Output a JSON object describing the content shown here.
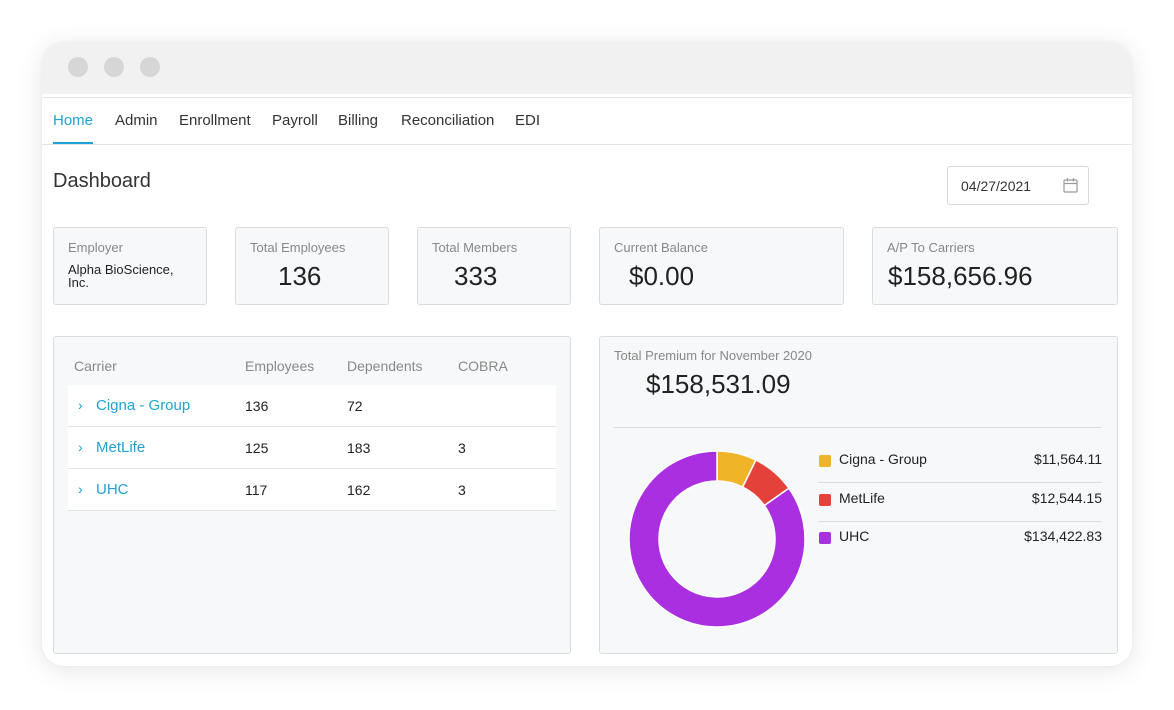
{
  "nav": {
    "tabs": [
      {
        "label": "Home",
        "active": true
      },
      {
        "label": "Admin"
      },
      {
        "label": "Enrollment"
      },
      {
        "label": "Payroll"
      },
      {
        "label": "Billing"
      },
      {
        "label": "Reconciliation"
      },
      {
        "label": "EDI"
      }
    ]
  },
  "page": {
    "title": "Dashboard",
    "date": "04/27/2021",
    "calendar_icon": "calendar-icon"
  },
  "summary": {
    "employer": {
      "label": "Employer",
      "value": "Alpha BioScience, Inc."
    },
    "total_employees": {
      "label": "Total Employees",
      "value": "136"
    },
    "total_members": {
      "label": "Total Members",
      "value": "333"
    },
    "current_balance": {
      "label": "Current Balance",
      "value": "$0.00"
    },
    "ap_to_carriers": {
      "label": "A/P To Carriers",
      "value": "$158,656.96"
    }
  },
  "carriers_table": {
    "headers": [
      "Carrier",
      "Employees",
      "Dependents",
      "COBRA"
    ],
    "expand_icon": "chevron-right-icon",
    "rows": [
      {
        "carrier": "Cigna - Group",
        "employees": "136",
        "dependents": "72",
        "cobra": ""
      },
      {
        "carrier": "MetLife",
        "employees": "125",
        "dependents": "183",
        "cobra": "3"
      },
      {
        "carrier": "UHC",
        "employees": "117",
        "dependents": "162",
        "cobra": "3"
      }
    ]
  },
  "premium": {
    "label": "Total Premium for November 2020",
    "total": "$158,531.09",
    "legend": [
      {
        "name": "Cigna - Group",
        "amount": "$11,564.11",
        "color": "#f0b429"
      },
      {
        "name": "MetLife",
        "amount": "$12,544.15",
        "color": "#e3413a"
      },
      {
        "name": "UHC",
        "amount": "$134,422.83",
        "color": "#a92fe0"
      }
    ]
  },
  "chart_data": {
    "type": "pie",
    "categories": [
      "Cigna - Group",
      "MetLife",
      "UHC"
    ],
    "values": [
      11564.11,
      12544.15,
      134422.83
    ],
    "colors": [
      "#f0b429",
      "#e3413a",
      "#a92fe0"
    ],
    "donut": true,
    "legend_position": "right"
  }
}
